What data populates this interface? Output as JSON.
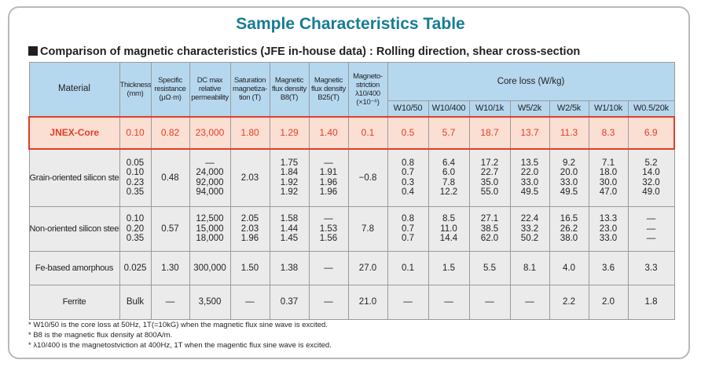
{
  "title": "Sample Characteristics Table",
  "subtitle": "Comparison of magnetic characteristics (JFE in-house data) : Rolling direction, shear cross-section",
  "headers": {
    "material": "Material",
    "thickness": [
      "Thickness",
      "(mm)"
    ],
    "resistance": [
      "Specific",
      "resistance",
      "(μΩ·m)"
    ],
    "permeability": [
      "DC max",
      "relative",
      "permeability"
    ],
    "saturation": [
      "Saturation",
      "magnetiza-",
      "tion (T)"
    ],
    "b8": [
      "Magnetic",
      "flux density",
      "B8(T)"
    ],
    "b25": [
      "Magnetic",
      "flux density",
      "B25(T)"
    ],
    "magnetostriction": [
      "Magneto-",
      "striction",
      "λ10/400",
      "(×10⁻⁶)"
    ],
    "core_loss": "Core loss (W/kg)",
    "core_loss_cols": [
      "W10/50",
      "W10/400",
      "W10/1k",
      "W5/2k",
      "W2/5k",
      "W1/10k",
      "W0.5/20k"
    ]
  },
  "rows": [
    {
      "material": "JNEX-Core",
      "cells": [
        "0.10",
        "0.82",
        "23,000",
        "1.80",
        "1.29",
        "1.40",
        "0.1",
        "0.5",
        "5.7",
        "18.7",
        "13.7",
        "11.3",
        "8.3",
        "6.9"
      ]
    },
    {
      "material": "Grain-oriented silicon steel",
      "cells": [
        [
          "0.05",
          "0.10",
          "0.23",
          "0.35"
        ],
        [
          "0.48"
        ],
        [
          "—",
          "24,000",
          "92,000",
          "94,000"
        ],
        [
          "2.03"
        ],
        [
          "1.75",
          "1.84",
          "1.92",
          "1.92"
        ],
        [
          "—",
          "1.91",
          "1.96",
          "1.96"
        ],
        [
          "−0.8"
        ],
        [
          "0.8",
          "0.7",
          "0.3",
          "0.4"
        ],
        [
          "6.4",
          "6.0",
          "7.8",
          "12.2"
        ],
        [
          "17.2",
          "22.7",
          "35.0",
          "55.0"
        ],
        [
          "13.5",
          "22.0",
          "33.0",
          "49.5"
        ],
        [
          "9.2",
          "20.0",
          "33.0",
          "49.5"
        ],
        [
          "7.1",
          "18.0",
          "30.0",
          "47.0"
        ],
        [
          "5.2",
          "14.0",
          "32.0",
          "49.0"
        ]
      ]
    },
    {
      "material": "Non-oriented silicon steel",
      "cells": [
        [
          "0.10",
          "0.20",
          "0.35"
        ],
        [
          "0.57"
        ],
        [
          "12,500",
          "15,000",
          "18,000"
        ],
        [
          "2.05",
          "2.03",
          "1.96"
        ],
        [
          "1.58",
          "1.44",
          "1.45"
        ],
        [
          "—",
          "1.53",
          "1.56"
        ],
        [
          "7.8"
        ],
        [
          "0.8",
          "0.7",
          "0.7"
        ],
        [
          "8.5",
          "11.0",
          "14.4"
        ],
        [
          "27.1",
          "38.5",
          "62.0"
        ],
        [
          "22.4",
          "33.2",
          "50.2"
        ],
        [
          "16.5",
          "26.2",
          "38.0"
        ],
        [
          "13.3",
          "23.0",
          "33.0"
        ],
        [
          "—",
          "—",
          "—"
        ]
      ]
    },
    {
      "material": "Fe-based amorphous",
      "cells": [
        "0.025",
        "1.30",
        "300,000",
        "1.50",
        "1.38",
        "—",
        "27.0",
        "0.1",
        "1.5",
        "5.5",
        "8.1",
        "4.0",
        "3.6",
        "3.3"
      ]
    },
    {
      "material": "Ferrite",
      "cells": [
        "Bulk",
        "—",
        "3,500",
        "—",
        "0.37",
        "—",
        "21.0",
        "—",
        "—",
        "—",
        "—",
        "2.2",
        "2.0",
        "1.8"
      ]
    }
  ],
  "notes": [
    "* W10/50 is the core loss at 50Hz, 1T(=10kG) when the magnetic flux sine wave is excited.",
    "* B8 is the magnetic flux density at 800A/m.",
    "* λ10/400 is the magnetostviction at 400Hz, 1T when the magentic flux sine wave is excited."
  ],
  "colors": {
    "title": "#187c95",
    "header_bg": "#b5d8ef",
    "row_bg": "#ebebeb",
    "highlight_bg": "#fcdfd3",
    "highlight_text": "#e23d28"
  }
}
